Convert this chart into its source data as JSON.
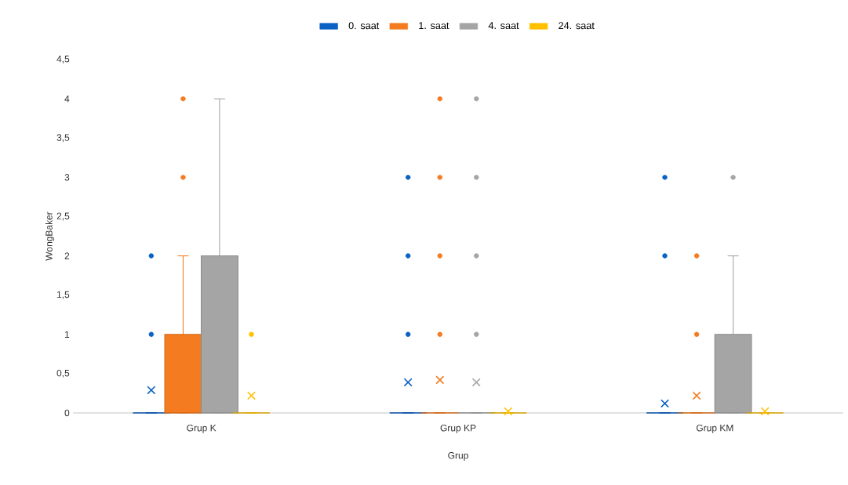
{
  "chart_data": {
    "type": "box",
    "xlabel": "Grup",
    "ylabel": "WongBaker",
    "legend": "top",
    "categories": [
      "Grup K",
      "Grup KP",
      "Grup KM"
    ],
    "ylim": [
      0,
      4.5
    ],
    "yticks": [
      0,
      {
        "value": 0.5,
        "label": "0,5"
      },
      1,
      {
        "value": 1.5,
        "label": "1,5"
      },
      2,
      {
        "value": 2.5,
        "label": "2,5"
      },
      3,
      {
        "value": 3.5,
        "label": "3,5"
      },
      4,
      {
        "value": 4.5,
        "label": "4,5"
      }
    ],
    "series": [
      {
        "name": "0. saat",
        "color": "#0a62c4",
        "boxes": [
          {
            "low": 0,
            "q1": 0,
            "median": 0,
            "q3": 0,
            "high": 0,
            "mean": 0.29,
            "outliers": [
              1,
              2
            ]
          },
          {
            "low": 0,
            "q1": 0,
            "median": 0,
            "q3": 0,
            "high": 0,
            "mean": 0.39,
            "outliers": [
              1,
              2,
              3
            ]
          },
          {
            "low": 0,
            "q1": 0,
            "median": 0,
            "q3": 0,
            "high": 0,
            "mean": 0.12,
            "outliers": [
              2,
              3
            ]
          }
        ]
      },
      {
        "name": "1. saat",
        "color": "#f47b20",
        "boxes": [
          {
            "low": 0,
            "q1": 0,
            "median": 0,
            "q3": 1,
            "high": 2,
            "mean": 0.59,
            "outliers": [
              3,
              4
            ]
          },
          {
            "low": 0,
            "q1": 0,
            "median": 0,
            "q3": 0,
            "high": 0,
            "mean": 0.42,
            "outliers": [
              1,
              2,
              3,
              4
            ]
          },
          {
            "low": 0,
            "q1": 0,
            "median": 0,
            "q3": 0,
            "high": 0,
            "mean": 0.22,
            "outliers": [
              1,
              2
            ]
          }
        ]
      },
      {
        "name": "4. saat",
        "color": "#a5a5a5",
        "boxes": [
          {
            "low": 0,
            "q1": 0,
            "median": 0,
            "q3": 2,
            "high": 4,
            "mean": 0.81
          },
          {
            "low": 0,
            "q1": 0,
            "median": 0,
            "q3": 0,
            "high": 0,
            "mean": 0.39,
            "outliers": [
              1,
              2,
              3,
              4
            ]
          },
          {
            "low": 0,
            "q1": 0,
            "median": 0,
            "q3": 1,
            "high": 2,
            "mean": 0.47,
            "outliers": [
              3
            ]
          }
        ]
      },
      {
        "name": "24. saat",
        "color": "#ffc000",
        "boxes": [
          {
            "low": 0,
            "q1": 0,
            "median": 0,
            "q3": 0,
            "high": 0,
            "mean": 0.22,
            "outliers": [
              1
            ]
          },
          {
            "low": 0,
            "q1": 0,
            "median": 0,
            "q3": 0,
            "high": 0,
            "mean": 0.02
          },
          {
            "low": 0,
            "q1": 0,
            "median": 0,
            "q3": 0,
            "high": 0,
            "mean": 0.02
          }
        ]
      }
    ]
  }
}
